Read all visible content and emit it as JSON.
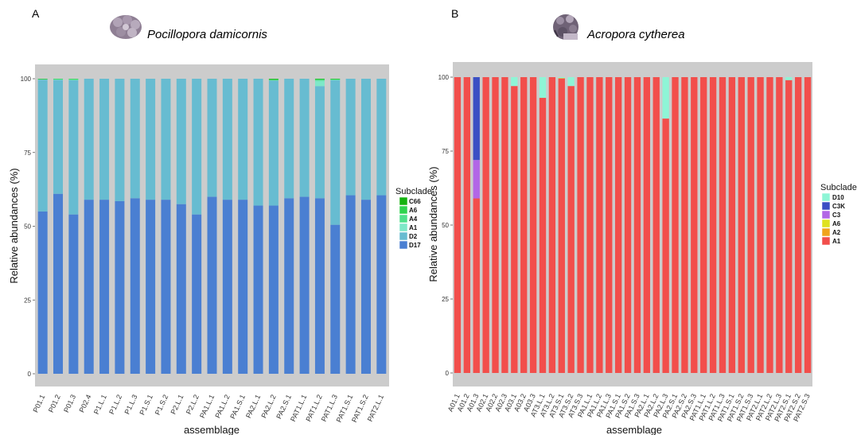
{
  "chart_data": [
    {
      "type": "bar",
      "stacked": true,
      "panel_label": "A",
      "title": "Pocillopora damicornis",
      "xlabel": "assemblage",
      "ylabel": "Relative abundances (%)",
      "ylim": [
        0,
        100
      ],
      "yticks": [
        "0",
        "25",
        "50",
        "75",
        "100"
      ],
      "grid": false,
      "background": "#cccccc",
      "legend_position": "right",
      "legend_title": "Subclade",
      "categories": [
        "P01.1",
        "P01.2",
        "P01.3",
        "P02.4",
        "P1.L.1",
        "P1.L.2",
        "P1.L.3",
        "P1.S.1",
        "P1.S.2",
        "P2.L.1",
        "P2.L.2",
        "PA1.L.1",
        "PA1.L.2",
        "PA1.S.1",
        "PA2.L.1",
        "PA2.L.2",
        "PA2.S.1",
        "PAT1.L.1",
        "PAT1.L.2",
        "PAT1.L.3",
        "PAT1.S.1",
        "PAT1.S.2",
        "PAT2.L.1"
      ],
      "series": [
        {
          "name": "D17",
          "color": "#4a7fd2",
          "values": [
            55,
            61,
            54,
            59,
            59,
            58.5,
            59.5,
            59,
            59,
            57.5,
            54,
            60,
            59,
            59,
            57,
            57,
            59.5,
            60,
            59.5,
            50.5,
            60.5,
            59,
            60.5
          ]
        },
        {
          "name": "D2",
          "color": "#67bcd1",
          "values": [
            44.7,
            38.6,
            45.5,
            41,
            41,
            41.5,
            40.5,
            41,
            41,
            42.5,
            46,
            40,
            41,
            41,
            43,
            42.4,
            40.5,
            40,
            38,
            49,
            39.5,
            41,
            39.5
          ]
        },
        {
          "name": "A1",
          "color": "#7ee8c8",
          "values": [
            0.1,
            0.1,
            0.1,
            0,
            0,
            0,
            0,
            0,
            0,
            0,
            0,
            0,
            0,
            0,
            0,
            0,
            0,
            0,
            1.8,
            0.1,
            0,
            0,
            0
          ]
        },
        {
          "name": "A4",
          "color": "#4fe08a",
          "values": [
            0.1,
            0.2,
            0.2,
            0,
            0,
            0,
            0,
            0,
            0,
            0,
            0,
            0,
            0,
            0,
            0,
            0.2,
            0,
            0,
            0.4,
            0.2,
            0,
            0,
            0
          ]
        },
        {
          "name": "A6",
          "color": "#2fd44e",
          "values": [
            0,
            0.1,
            0.2,
            0,
            0,
            0,
            0,
            0,
            0,
            0,
            0,
            0,
            0,
            0,
            0,
            0.2,
            0,
            0,
            0.2,
            0.1,
            0,
            0,
            0
          ]
        },
        {
          "name": "C66",
          "color": "#14b20f",
          "values": [
            0.1,
            0,
            0,
            0,
            0,
            0,
            0,
            0,
            0,
            0,
            0,
            0,
            0,
            0,
            0,
            0.2,
            0,
            0,
            0.1,
            0.1,
            0,
            0,
            0
          ]
        }
      ],
      "legend_order": [
        "C66",
        "A6",
        "A4",
        "A1",
        "D2",
        "D17"
      ]
    },
    {
      "type": "bar",
      "stacked": true,
      "panel_label": "B",
      "title": "Acropora cytherea",
      "xlabel": "assemblage",
      "ylabel": "Relative abundances (%)",
      "ylim": [
        0,
        100
      ],
      "yticks": [
        "0",
        "25",
        "50",
        "75",
        "100"
      ],
      "grid": false,
      "background": "#cccccc",
      "legend_position": "right",
      "legend_title": "Subclade",
      "categories": [
        "A01.1",
        "A01.2",
        "A01.3",
        "A02.1",
        "A02.2",
        "A02.3",
        "A03.1",
        "A03.2",
        "A03.3",
        "AT3.L.1",
        "AT3.L.2",
        "AT3.S.1",
        "AT3.S.2",
        "AT3.S.3",
        "PA1.L.1",
        "PA1.L.2",
        "PA1.L.3",
        "PA1.S.1",
        "PA1.S.2",
        "PA1.S.3",
        "PA2.L.1",
        "PA2.L.2",
        "PA2.L.3",
        "PA2.S.1",
        "PA2.S.2",
        "PA2.S.3",
        "PAT1.L.1",
        "PAT1.L.2",
        "PAT1.L.3",
        "PAT1.S.1",
        "PAT1.S.2",
        "PAT1.S.3",
        "PAT2.L.1",
        "PAT2.L.2",
        "PAT2.L.3",
        "PAT2.S.1",
        "PAT2.S.2",
        "PAT2.S.3"
      ],
      "series": [
        {
          "name": "A1",
          "color": "#f24e4b",
          "values": [
            100,
            100,
            59,
            100,
            100,
            100,
            97,
            100,
            100,
            93,
            100,
            99.5,
            97,
            100,
            100,
            100,
            100,
            100,
            100,
            100,
            100,
            100,
            86,
            100,
            100,
            100,
            100,
            100,
            100,
            100,
            100,
            100,
            100,
            100,
            100,
            99,
            100,
            100
          ]
        },
        {
          "name": "A2",
          "color": "#f0a41c",
          "values": [
            0,
            0,
            0,
            0,
            0,
            0,
            0,
            0,
            0,
            0,
            0,
            0.2,
            0,
            0,
            0,
            0,
            0,
            0,
            0,
            0,
            0,
            0,
            0,
            0,
            0,
            0,
            0,
            0,
            0,
            0,
            0,
            0,
            0,
            0,
            0,
            0,
            0,
            0
          ]
        },
        {
          "name": "A6",
          "color": "#dfe21f",
          "values": [
            0,
            0,
            0,
            0,
            0,
            0,
            0,
            0,
            0,
            0,
            0,
            0,
            0,
            0,
            0,
            0,
            0,
            0,
            0,
            0,
            0,
            0,
            0,
            0,
            0,
            0,
            0,
            0,
            0,
            0,
            0,
            0,
            0,
            0,
            0,
            0,
            0,
            0
          ]
        },
        {
          "name": "C3",
          "color": "#b266e6",
          "values": [
            0,
            0,
            13,
            0,
            0,
            0,
            0,
            0,
            0,
            0,
            0,
            0,
            0,
            0,
            0,
            0,
            0,
            0,
            0,
            0,
            0,
            0,
            0,
            0,
            0,
            0,
            0,
            0,
            0,
            0,
            0,
            0,
            0,
            0,
            0,
            0,
            0,
            0
          ]
        },
        {
          "name": "C3K",
          "color": "#3a4fc4",
          "values": [
            0,
            0,
            28,
            0,
            0,
            0,
            0,
            0,
            0,
            0,
            0,
            0,
            0,
            0,
            0,
            0,
            0,
            0,
            0,
            0,
            0,
            0,
            0,
            0,
            0,
            0,
            0,
            0,
            0,
            0,
            0,
            0,
            0,
            0,
            0,
            0,
            0,
            0
          ]
        },
        {
          "name": "D10",
          "color": "#8ef5d6",
          "values": [
            0,
            0,
            0,
            0,
            0,
            0,
            3,
            0,
            0,
            7,
            0,
            0.3,
            3,
            0,
            0,
            0,
            0,
            0,
            0,
            0,
            0,
            0,
            14,
            0,
            0,
            0,
            0,
            0,
            0,
            0,
            0,
            0,
            0,
            0,
            0,
            1,
            0,
            0
          ]
        }
      ],
      "legend_order": [
        "D10",
        "C3K",
        "C3",
        "A6",
        "A2",
        "A1"
      ]
    }
  ],
  "icons": [
    "coral-icon",
    "coral-icon"
  ]
}
